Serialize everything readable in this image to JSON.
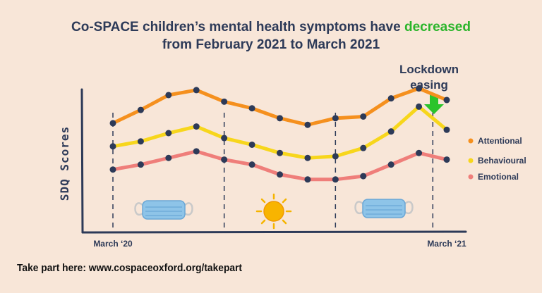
{
  "title": {
    "line1_prefix": "Co-SPACE children’s mental health symptoms have ",
    "line1_highlight": "decreased",
    "line2": "from February 2021 to March 2021",
    "highlight_color": "#2bb52b"
  },
  "callout": {
    "line1": "Lockdown",
    "line2": "easing",
    "arrow_icon": "down-arrow-icon",
    "arrow_color": "#2bc42b"
  },
  "footer": {
    "text": "Take part here: www.cospaceoxford.org/takepart"
  },
  "decorations": [
    "face-mask-icon",
    "sun-icon",
    "face-mask-icon"
  ],
  "chart_data": {
    "type": "line",
    "title": "",
    "xlabel": "",
    "ylabel": "SDQ Scores",
    "x": [
      0,
      1,
      2,
      3,
      4,
      5,
      6,
      7,
      8,
      9,
      10,
      11,
      12
    ],
    "x_tick_labels": [
      {
        "x": 0,
        "label": "March ‘20"
      },
      {
        "x": 12,
        "label": "March ‘21"
      }
    ],
    "xlim": [
      -0.1,
      12.3
    ],
    "ylim": [
      0,
      10
    ],
    "grid": false,
    "legend": "right",
    "series": [
      {
        "name": "Attentional",
        "color": "#f5901e",
        "values": [
          6.6,
          7.4,
          8.3,
          8.6,
          7.9,
          7.5,
          6.9,
          6.5,
          6.9,
          7.0,
          8.1,
          8.7,
          8.0
        ]
      },
      {
        "name": "Behavioural",
        "color": "#f7d61c",
        "values": [
          5.2,
          5.5,
          6.0,
          6.4,
          5.7,
          5.3,
          4.8,
          4.5,
          4.6,
          5.1,
          6.1,
          7.6,
          6.2
        ]
      },
      {
        "name": "Emotional",
        "color": "#ef7e7a",
        "values": [
          3.8,
          4.1,
          4.5,
          4.9,
          4.4,
          4.1,
          3.5,
          3.2,
          3.2,
          3.4,
          4.1,
          4.8,
          4.4
        ]
      }
    ],
    "marker_color": "#2d3a58",
    "vertical_dividers": [
      0,
      4,
      8,
      11.5
    ]
  }
}
